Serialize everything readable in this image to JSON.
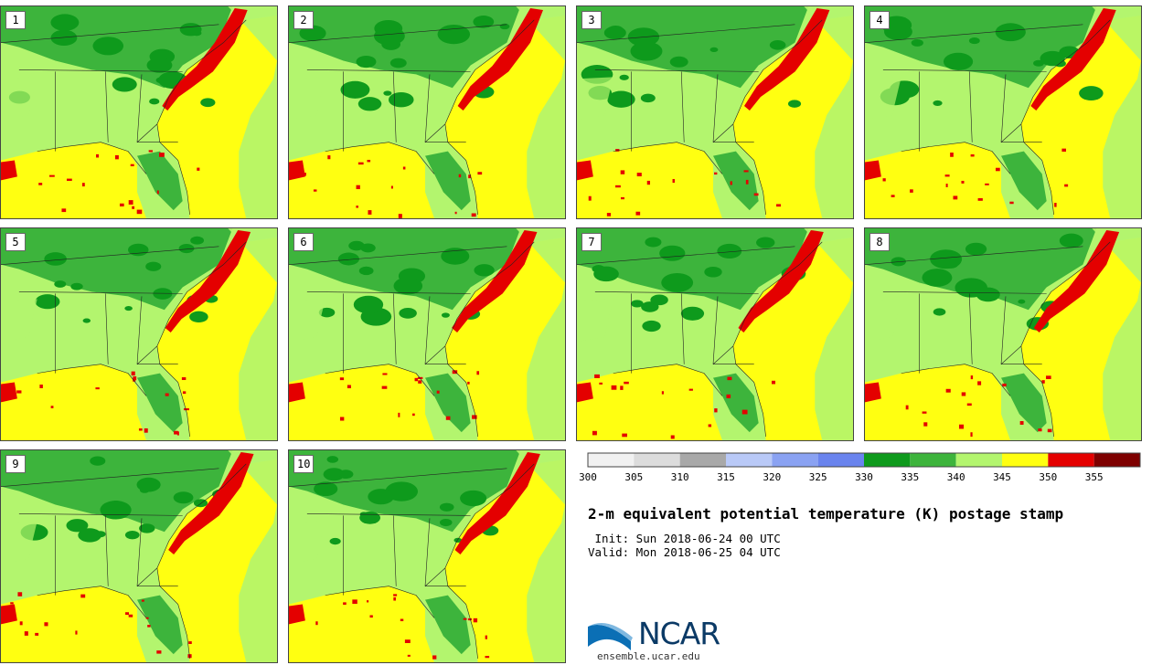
{
  "panels": [
    {
      "label": "1"
    },
    {
      "label": "2"
    },
    {
      "label": "3"
    },
    {
      "label": "4"
    },
    {
      "label": "5"
    },
    {
      "label": "6"
    },
    {
      "label": "7"
    },
    {
      "label": "8"
    },
    {
      "label": "9"
    },
    {
      "label": "10"
    }
  ],
  "colorbar": {
    "ticks": [
      "300",
      "305",
      "310",
      "315",
      "320",
      "325",
      "330",
      "335",
      "340",
      "345",
      "350",
      "355"
    ],
    "colors": [
      "#f1f1f1",
      "#dcdcdc",
      "#a8a8a8",
      "#b9c9f7",
      "#8aa2f2",
      "#6a84ee",
      "#0e9a1c",
      "#3db43c",
      "#b3f56e",
      "#ffff11",
      "#e40000",
      "#7e0000"
    ]
  },
  "title": "2-m equivalent potential temperature (K) postage stamp",
  "init": " Init: Sun 2018-06-24 00 UTC",
  "valid": "Valid: Mon 2018-06-25 04 UTC",
  "logo": {
    "name": "NCAR",
    "site": "ensemble.ucar.edu"
  },
  "colors": {
    "land_green": "#b3f56e",
    "dark_green": "#0e9a1c",
    "mid_green": "#3db43c",
    "yellow": "#ffff11",
    "red": "#e40000",
    "blue": "#6a84ee"
  }
}
